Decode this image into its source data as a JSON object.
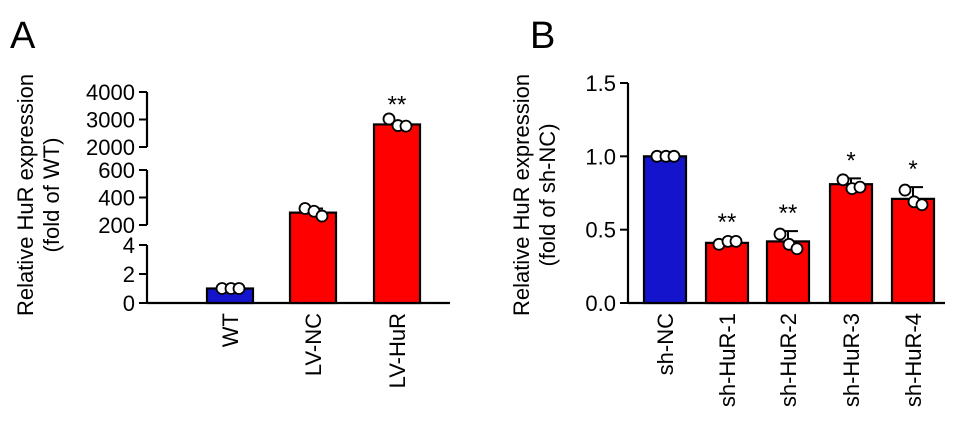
{
  "chart_data": [
    {
      "panel_label": "A",
      "type": "bar",
      "ylabel_lines": [
        "Relative HuR expression",
        "(fold of WT)"
      ],
      "y_axis": "broken",
      "y_segments": [
        {
          "min": 0,
          "max": 4,
          "ticks": [
            0,
            2,
            4
          ]
        },
        {
          "min": 200,
          "max": 600,
          "ticks": [
            200,
            400,
            600
          ]
        },
        {
          "min": 2000,
          "max": 4000,
          "ticks": [
            2000,
            3000,
            4000
          ]
        }
      ],
      "categories": [
        "WT",
        "LV-NC",
        "LV-HuR"
      ],
      "values": [
        1.0,
        290,
        2820
      ],
      "errors": [
        0.05,
        30,
        80
      ],
      "points": [
        [
          1.0,
          1.0,
          1.0
        ],
        [
          320,
          300,
          265
        ],
        [
          3020,
          2780,
          2760
        ]
      ],
      "bar_colors": [
        "#1414cc",
        "#ff0000",
        "#ff0000"
      ],
      "significance": [
        "",
        "",
        "**"
      ]
    },
    {
      "panel_label": "B",
      "type": "bar",
      "ylabel_lines": [
        "Relative HuR expression",
        "(fold of sh-NC)"
      ],
      "ylim": [
        0,
        1.5
      ],
      "yticks": [
        "0.0",
        "0.5",
        "1.0",
        "1.5"
      ],
      "categories": [
        "sh-NC",
        "sh-HuR-1",
        "sh-HuR-2",
        "sh-HuR-3",
        "sh-HuR-4"
      ],
      "values": [
        1.0,
        0.41,
        0.42,
        0.81,
        0.71
      ],
      "errors": [
        0.01,
        0.02,
        0.07,
        0.04,
        0.08
      ],
      "points": [
        [
          1.0,
          1.0,
          1.0
        ],
        [
          0.4,
          0.42,
          0.42
        ],
        [
          0.47,
          0.4,
          0.37
        ],
        [
          0.84,
          0.78,
          0.79
        ],
        [
          0.77,
          0.69,
          0.67
        ]
      ],
      "bar_colors": [
        "#1414cc",
        "#ff0000",
        "#ff0000",
        "#ff0000",
        "#ff0000"
      ],
      "significance": [
        "",
        "**",
        "**",
        "*",
        "*"
      ]
    }
  ]
}
